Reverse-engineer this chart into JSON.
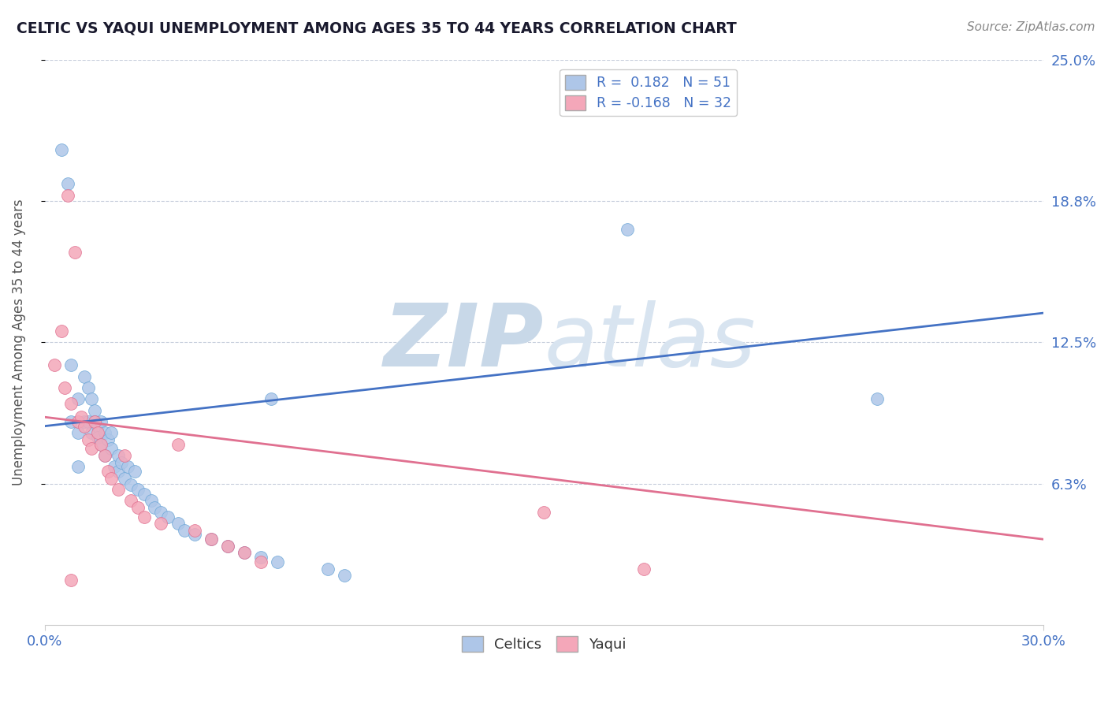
{
  "title": "CELTIC VS YAQUI UNEMPLOYMENT AMONG AGES 35 TO 44 YEARS CORRELATION CHART",
  "source_text": "Source: ZipAtlas.com",
  "ylabel": "Unemployment Among Ages 35 to 44 years",
  "xlim": [
    0.0,
    0.3
  ],
  "ylim": [
    0.0,
    0.25
  ],
  "yticks": [
    0.0625,
    0.125,
    0.1875,
    0.25
  ],
  "yticklabels": [
    "6.3%",
    "12.5%",
    "18.8%",
    "25.0%"
  ],
  "xticks": [
    0.0,
    0.3
  ],
  "xticklabels": [
    "0.0%",
    "30.0%"
  ],
  "celtics_color": "#aec6e8",
  "celtics_edge": "#6fa8d8",
  "celtics_line": "#4472c4",
  "yaqui_color": "#f4a7b9",
  "yaqui_edge": "#e07090",
  "yaqui_line": "#e07090",
  "watermark_zip": "ZIP",
  "watermark_atlas": "atlas",
  "watermark_color": "#c8d8e8",
  "grid_color": "#c0c8d8",
  "background_color": "#ffffff",
  "title_color": "#1a1a2e",
  "tick_color": "#4472c4",
  "celtics_scatter_x": [
    0.005,
    0.007,
    0.175,
    0.008,
    0.008,
    0.01,
    0.01,
    0.01,
    0.012,
    0.012,
    0.013,
    0.013,
    0.014,
    0.014,
    0.015,
    0.015,
    0.016,
    0.016,
    0.017,
    0.017,
    0.018,
    0.018,
    0.019,
    0.02,
    0.02,
    0.021,
    0.022,
    0.022,
    0.023,
    0.024,
    0.025,
    0.026,
    0.027,
    0.028,
    0.03,
    0.032,
    0.033,
    0.035,
    0.037,
    0.04,
    0.042,
    0.045,
    0.05,
    0.055,
    0.06,
    0.065,
    0.07,
    0.085,
    0.09,
    0.25,
    0.068
  ],
  "celtics_scatter_y": [
    0.21,
    0.195,
    0.175,
    0.09,
    0.115,
    0.1,
    0.085,
    0.07,
    0.11,
    0.09,
    0.105,
    0.09,
    0.1,
    0.085,
    0.095,
    0.09,
    0.088,
    0.083,
    0.09,
    0.08,
    0.085,
    0.075,
    0.082,
    0.085,
    0.078,
    0.07,
    0.075,
    0.068,
    0.072,
    0.065,
    0.07,
    0.062,
    0.068,
    0.06,
    0.058,
    0.055,
    0.052,
    0.05,
    0.048,
    0.045,
    0.042,
    0.04,
    0.038,
    0.035,
    0.032,
    0.03,
    0.028,
    0.025,
    0.022,
    0.1,
    0.1
  ],
  "yaqui_scatter_x": [
    0.007,
    0.009,
    0.003,
    0.005,
    0.006,
    0.008,
    0.01,
    0.011,
    0.012,
    0.013,
    0.014,
    0.015,
    0.016,
    0.017,
    0.018,
    0.019,
    0.02,
    0.022,
    0.024,
    0.026,
    0.028,
    0.03,
    0.035,
    0.04,
    0.045,
    0.05,
    0.055,
    0.06,
    0.065,
    0.15,
    0.18,
    0.008
  ],
  "yaqui_scatter_y": [
    0.19,
    0.165,
    0.115,
    0.13,
    0.105,
    0.098,
    0.09,
    0.092,
    0.088,
    0.082,
    0.078,
    0.09,
    0.085,
    0.08,
    0.075,
    0.068,
    0.065,
    0.06,
    0.075,
    0.055,
    0.052,
    0.048,
    0.045,
    0.08,
    0.042,
    0.038,
    0.035,
    0.032,
    0.028,
    0.05,
    0.025,
    0.02
  ],
  "celtics_trend_x": [
    0.0,
    0.3
  ],
  "celtics_trend_y": [
    0.088,
    0.138
  ],
  "yaqui_trend_x": [
    0.0,
    0.3
  ],
  "yaqui_trend_y": [
    0.092,
    0.038
  ]
}
